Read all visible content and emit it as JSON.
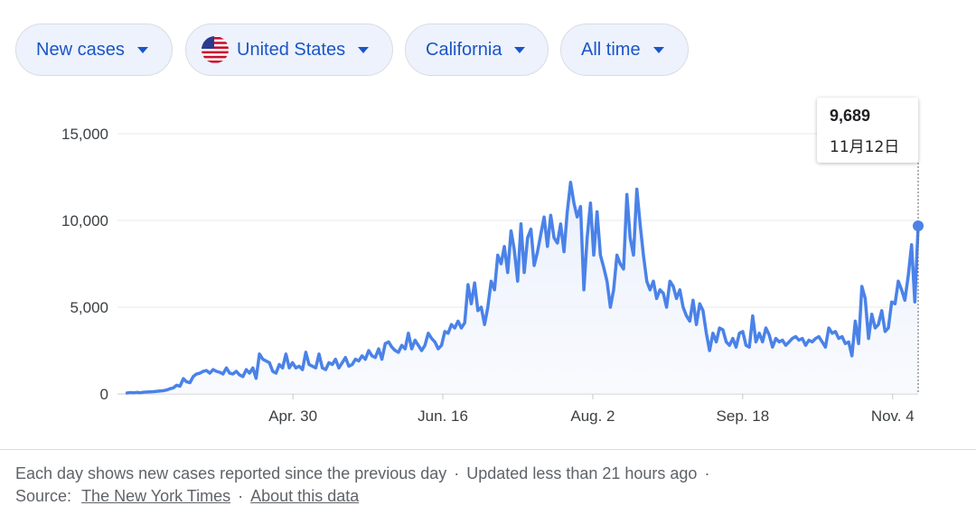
{
  "filters": {
    "metric": "New cases",
    "country": "United States",
    "region": "California",
    "range": "All time"
  },
  "colors": {
    "line": "#4a82e8",
    "chip_text": "#1a55c7",
    "chip_bg": "#edf2fc"
  },
  "tooltip": {
    "value": "9,689",
    "date": "11月12日"
  },
  "footer": {
    "note": "Each day shows new cases reported since the previous day",
    "updated": "Updated less than 21 hours ago",
    "source_label": "Source:",
    "source_link": "The New York Times",
    "about_link": "About this data"
  },
  "chart_data": {
    "type": "line",
    "title": "New cases",
    "xlabel": "",
    "ylabel": "",
    "ylim": [
      0,
      15000
    ],
    "y_ticks": [
      0,
      5000,
      10000,
      15000
    ],
    "y_tick_labels": [
      "0",
      "5,000",
      "10,000",
      "15,000"
    ],
    "x_tick_labels": [
      "Apr. 30",
      "Jun. 16",
      "Aug. 2",
      "Sep. 18",
      "Nov. 4"
    ],
    "x_tick_days": [
      55,
      102,
      149,
      196,
      243
    ],
    "x_range_days": [
      0,
      251
    ],
    "start_day_offset": 3,
    "series": [
      {
        "name": "New cases",
        "values": [
          50,
          80,
          60,
          90,
          70,
          100,
          110,
          120,
          130,
          150,
          170,
          190,
          230,
          300,
          350,
          500,
          450,
          880,
          700,
          650,
          1000,
          1150,
          1200,
          1300,
          1350,
          1200,
          1400,
          1300,
          1250,
          1150,
          1500,
          1200,
          1150,
          1300,
          1100,
          1000,
          1400,
          1200,
          1500,
          900,
          2300,
          2000,
          1900,
          1800,
          1300,
          1200,
          1700,
          1500,
          2300,
          1500,
          1800,
          1500,
          1600,
          1400,
          2400,
          1700,
          1600,
          1500,
          2300,
          1500,
          1400,
          1800,
          1700,
          2000,
          1500,
          1800,
          2100,
          1600,
          1700,
          2000,
          1900,
          2200,
          2000,
          2500,
          2200,
          2100,
          2600,
          2000,
          2900,
          3000,
          2700,
          2500,
          2400,
          2800,
          2600,
          3500,
          2600,
          3100,
          2800,
          2500,
          2800,
          3500,
          3200,
          3000,
          2600,
          2800,
          3600,
          3500,
          4000,
          3800,
          4200,
          3800,
          4100,
          6300,
          5200,
          6400,
          4800,
          5000,
          4000,
          5000,
          6500,
          6000,
          8000,
          7500,
          8500,
          7000,
          9400,
          8300,
          6500,
          9800,
          7000,
          9000,
          9500,
          7400,
          8200,
          9200,
          10200,
          8500,
          10300,
          9000,
          8700,
          9800,
          8200,
          10500,
          12200,
          11000,
          10200,
          10800,
          6000,
          9000,
          11000,
          8000,
          10500,
          8000,
          7300,
          6500,
          5000,
          6000,
          8000,
          7500,
          7200,
          11500,
          9000,
          8000,
          11800,
          9800,
          8000,
          6500,
          6000,
          6500,
          5500,
          6000,
          5800,
          5000,
          6500,
          6200,
          5500,
          6000,
          5000,
          4500,
          4200,
          5400,
          4000,
          5200,
          4800,
          3500,
          2500,
          3500,
          3000,
          3800,
          3700,
          3000,
          2800,
          3200,
          2700,
          3500,
          3600,
          2800,
          2700,
          4500,
          3000,
          3500,
          3000,
          3800,
          3400,
          2700,
          3200,
          3000,
          3100,
          2800,
          3000,
          3200,
          3300,
          3100,
          3200,
          2800,
          3100,
          3000,
          3200,
          3300,
          3000,
          2700,
          3800,
          3500,
          3600,
          3200,
          3300,
          2900,
          3000,
          2200,
          4200,
          2900,
          6200,
          5500,
          3200,
          4600,
          3800,
          4000,
          4800,
          3600,
          3800,
          5300,
          5200,
          6500,
          6000,
          5400,
          6800,
          8600,
          5300,
          9689
        ]
      }
    ]
  }
}
